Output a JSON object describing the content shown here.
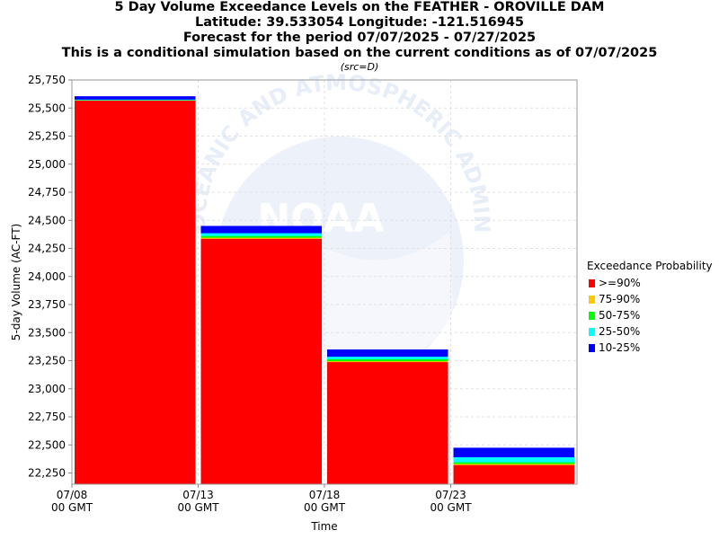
{
  "titles": {
    "line1": "5 Day Volume Exceedance Levels on the FEATHER - OROVILLE DAM",
    "line2": "Latitude: 39.533054 Longitude: -121.516945",
    "line3": "Forecast for the period 07/07/2025 - 07/27/2025",
    "line4": "This is a conditional simulation based on the current conditions as of 07/07/2025",
    "src": "(src=D)"
  },
  "watermark": {
    "text": "NATIONAL OCEANIC AND ATMOSPHERIC ADMINISTRATION",
    "logo_text": "NOAA"
  },
  "legend": {
    "title": "Exceedance Probability",
    "items": [
      {
        "label": ">=90%",
        "color": "#ff0000"
      },
      {
        "label": "75-90%",
        "color": "#ffc800"
      },
      {
        "label": "50-75%",
        "color": "#00ff00"
      },
      {
        "label": "25-50%",
        "color": "#00ffff"
      },
      {
        "label": "10-25%",
        "color": "#0000ff"
      }
    ]
  },
  "chart_data": {
    "type": "bar",
    "stacked": true,
    "xlabel": "Time",
    "ylabel": "5-day Volume (AC-FT)",
    "ylim": [
      22150,
      25750
    ],
    "yticks": [
      22250,
      22500,
      22750,
      23000,
      23250,
      23500,
      23750,
      24000,
      24250,
      24500,
      24750,
      25000,
      25250,
      25500,
      25750
    ],
    "ytick_labels": [
      "22,250",
      "22,500",
      "22,750",
      "23,000",
      "23,250",
      "23,500",
      "23,750",
      "24,000",
      "24,250",
      "24,500",
      "24,750",
      "25,000",
      "25,250",
      "25,500",
      "25,750"
    ],
    "xlim": [
      "07/08",
      "07/28"
    ],
    "xticks": [
      {
        "date": "07/08",
        "line1": "07/08",
        "line2": "00 GMT"
      },
      {
        "date": "07/13",
        "line1": "07/13",
        "line2": "00 GMT"
      },
      {
        "date": "07/18",
        "line1": "07/18",
        "line2": "00 GMT"
      },
      {
        "date": "07/23",
        "line1": "07/23",
        "line2": "00 GMT"
      }
    ],
    "periods": [
      {
        "start": "07/08",
        "end": "07/13",
        "levels": {
          ">=90%": 25565,
          "75-90%": 25567,
          "50-75%": 25569,
          "25-50%": 25575,
          "10-25%": 25605
        }
      },
      {
        "start": "07/13",
        "end": "07/18",
        "levels": {
          ">=90%": 24335,
          "75-90%": 24345,
          "50-75%": 24360,
          "25-50%": 24385,
          "10-25%": 24450
        }
      },
      {
        "start": "07/18",
        "end": "07/23",
        "levels": {
          ">=90%": 23237,
          "75-90%": 23245,
          "50-75%": 23262,
          "25-50%": 23285,
          "10-25%": 23350
        }
      },
      {
        "start": "07/23",
        "end": "07/28",
        "levels": {
          ">=90%": 22320,
          "75-90%": 22330,
          "50-75%": 22345,
          "25-50%": 22390,
          "10-25%": 22475
        }
      }
    ],
    "series": [
      {
        "name": ">=90%",
        "color": "#ff0000"
      },
      {
        "name": "75-90%",
        "color": "#ffc800"
      },
      {
        "name": "50-75%",
        "color": "#00ff00"
      },
      {
        "name": "25-50%",
        "color": "#00ffff"
      },
      {
        "name": "10-25%",
        "color": "#0000ff"
      }
    ],
    "grid": true,
    "legend_position": "right"
  }
}
